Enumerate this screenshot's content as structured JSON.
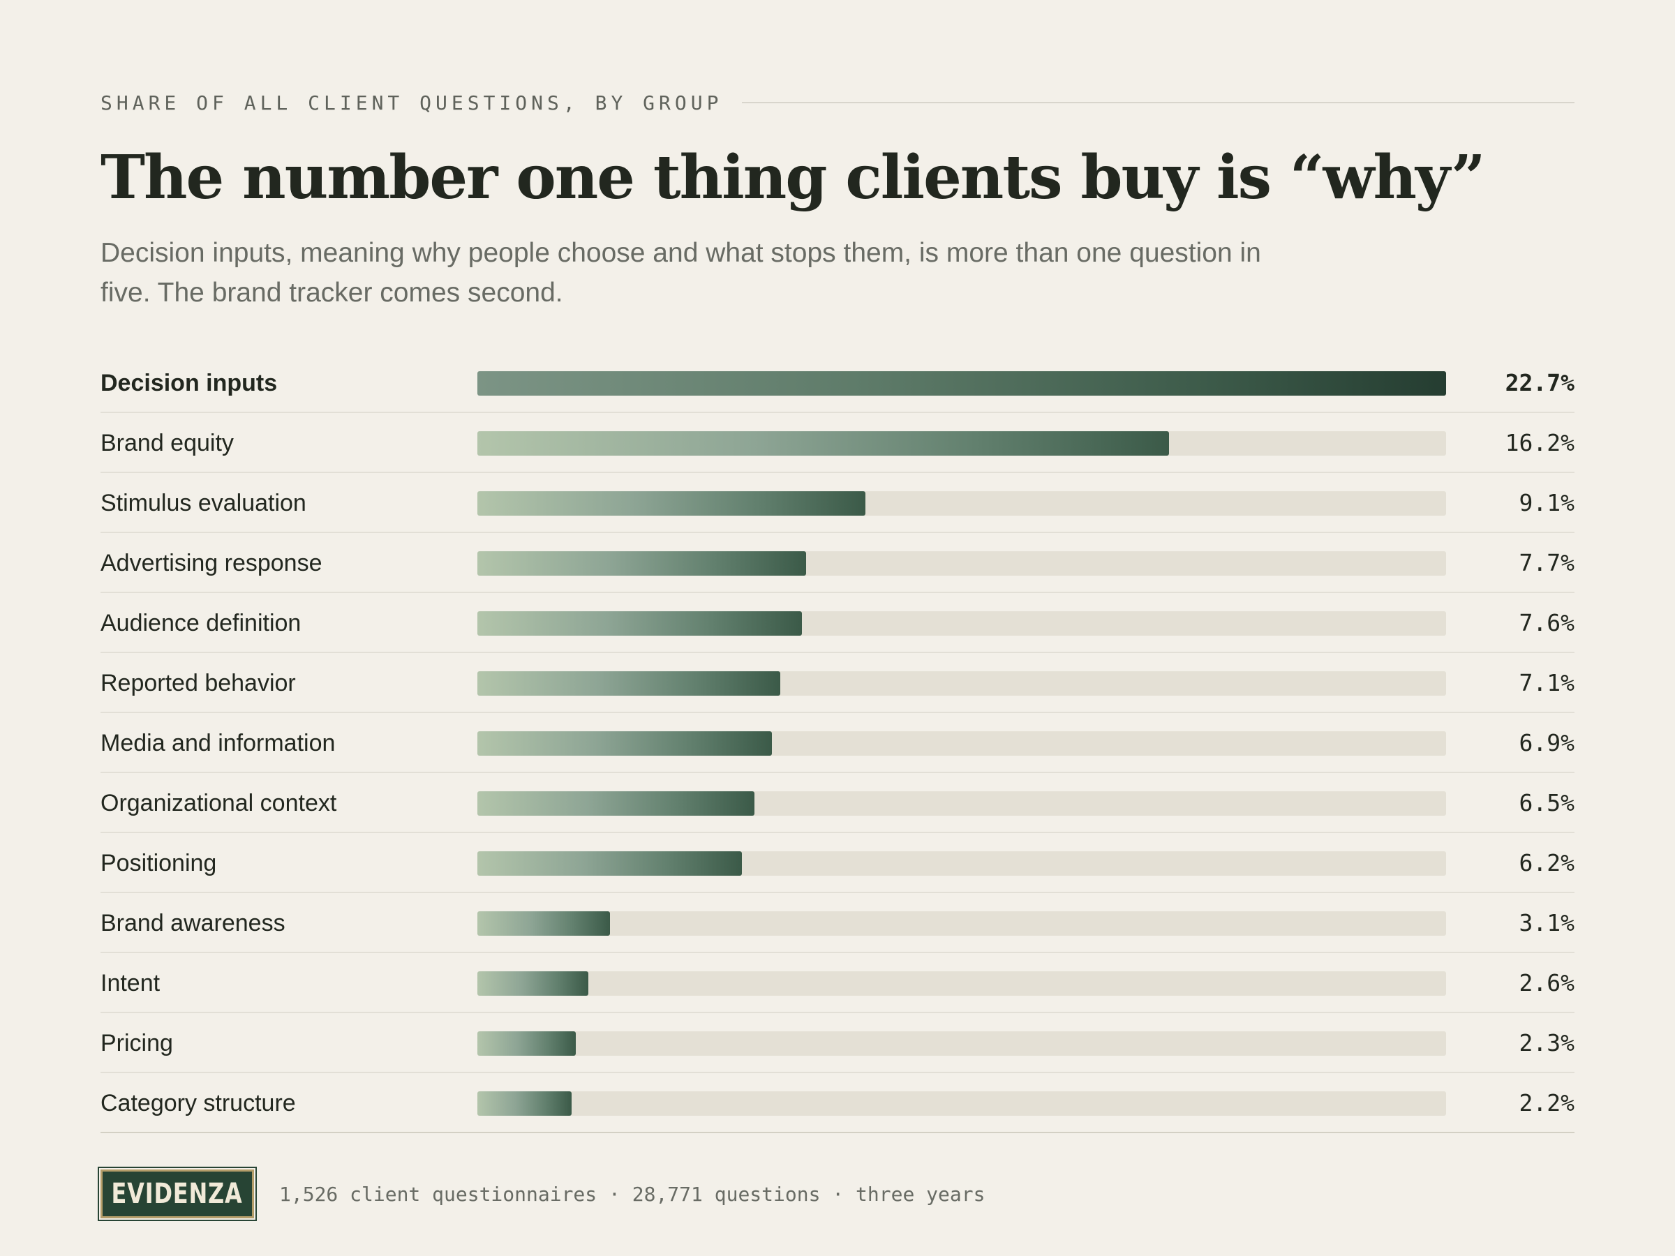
{
  "header": {
    "eyebrow": "SHARE OF ALL CLIENT QUESTIONS, BY GROUP",
    "title": "The number one thing clients buy is “why”",
    "subtitle": "Decision inputs, meaning why people choose and what stops them, is more than one question in five. The brand tracker comes second."
  },
  "chart_data": {
    "type": "bar",
    "orientation": "horizontal",
    "categories": [
      "Decision inputs",
      "Brand equity",
      "Stimulus evaluation",
      "Advertising response",
      "Audience definition",
      "Reported behavior",
      "Media and information",
      "Organizational context",
      "Positioning",
      "Brand awareness",
      "Intent",
      "Pricing",
      "Category structure"
    ],
    "values": [
      22.7,
      16.2,
      9.1,
      7.7,
      7.6,
      7.1,
      6.9,
      6.5,
      6.2,
      3.1,
      2.6,
      2.3,
      2.2
    ],
    "value_labels": [
      "22.7%",
      "16.2%",
      "9.1%",
      "7.7%",
      "7.6%",
      "7.1%",
      "6.9%",
      "6.5%",
      "6.2%",
      "3.1%",
      "2.6%",
      "2.3%",
      "2.2%"
    ],
    "xlim": [
      0,
      22.7
    ],
    "highlight": "Decision inputs",
    "grid": false,
    "legend": "none",
    "colors": {
      "track": "#e4e0d5",
      "bar_light": "#b3c5ab",
      "bar_dark": "#3b5a48",
      "highlight_dark": "#253d31"
    }
  },
  "footer": {
    "logo_text": "EVIDENZA",
    "note": "1,526 client questionnaires · 28,771 questions · three years"
  },
  "colors": {
    "background": "#f3f0e9",
    "text": "#22271f",
    "muted": "#686b64",
    "brand": "#274434"
  }
}
